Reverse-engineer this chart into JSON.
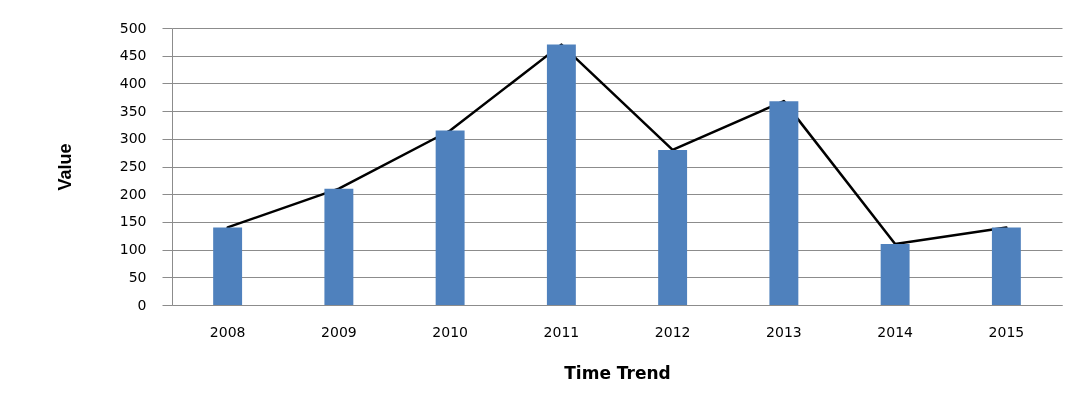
{
  "chart_data": {
    "type": "bar",
    "xlabel": "Time Trend",
    "ylabel": "Value",
    "categories": [
      "2008",
      "2009",
      "2010",
      "2011",
      "2012",
      "2013",
      "2014",
      "2015"
    ],
    "series": [
      {
        "type": "line",
        "color": "#000000",
        "values": [
          140,
          210,
          315,
          470,
          280,
          368,
          110,
          140
        ]
      },
      {
        "color": "#4f81bd",
        "values": [
          140,
          210,
          315,
          470,
          280,
          368,
          110,
          140
        ]
      }
    ],
    "ylim": [
      0,
      500
    ],
    "yticks": [
      0,
      50,
      100,
      150,
      200,
      250,
      300,
      350,
      400,
      450,
      500
    ],
    "grid": "y"
  }
}
